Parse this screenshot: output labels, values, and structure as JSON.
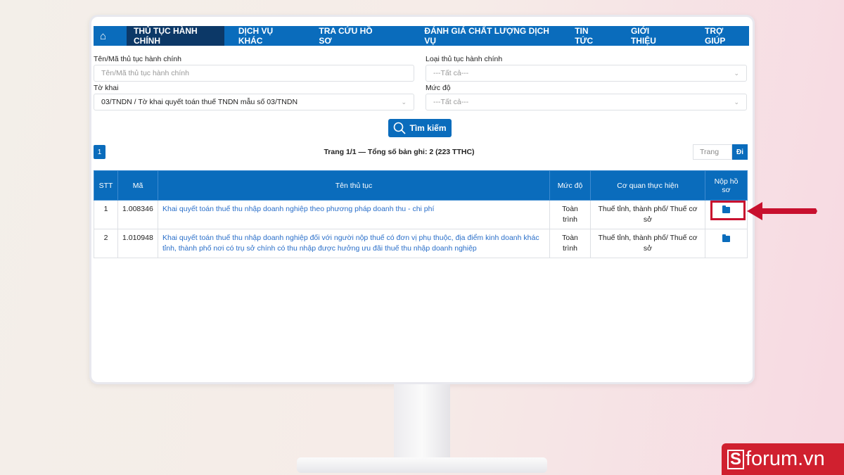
{
  "nav": {
    "home_icon": "home-icon",
    "items": [
      "THỦ TỤC HÀNH CHÍNH",
      "DỊCH VỤ KHÁC",
      "TRA CỨU HỒ SƠ",
      "ĐÁNH GIÁ CHẤT LƯỢNG DỊCH VỤ",
      "TIN TỨC",
      "GIỚI THIỆU",
      "TRỢ GIÚP"
    ],
    "active": 0
  },
  "form": {
    "name_label": "Tên/Mã thủ tục hành chính",
    "name_placeholder": "Tên/Mã thủ tục hành chính",
    "type_label": "Loại thủ tục hành chính",
    "type_value": "---Tất cả---",
    "form_label": "Tờ khai",
    "form_value": "03/TNDN / Tờ khai quyết toán thuế TNDN mẫu số 03/TNDN",
    "level_label": "Mức độ",
    "level_value": "---Tất cả---",
    "search_button": "Tìm kiếm"
  },
  "pagination": {
    "current_page": "1",
    "info": "Trang 1/1 — Tổng số bản ghi: 2 (223 TTHC)",
    "page_input_placeholder": "Trang",
    "go_button": "Đi"
  },
  "table": {
    "headers": [
      "STT",
      "Mã",
      "Tên thủ tục",
      "Mức độ",
      "Cơ quan thực hiện",
      "Nộp hồ sơ"
    ],
    "rows": [
      {
        "stt": "1",
        "ma": "1.008346",
        "ten": "Khai quyết toán thuế thu nhập doanh nghiệp theo phương pháp doanh thu - chi phí",
        "muc_do": "Toàn trình",
        "co_quan": "Thuế tỉnh, thành phố/ Thuế cơ sở"
      },
      {
        "stt": "2",
        "ma": "1.010948",
        "ten": "Khai quyết toán thuế thu nhập doanh nghiệp đối với người nộp thuế có đơn vị phụ thuộc, địa điểm kinh doanh khác tỉnh, thành phố nơi có trụ sở chính có thu nhập được hưởng ưu đãi thuế thu nhập doanh nghiệp",
        "muc_do": "Toàn trình",
        "co_quan": "Thuế tỉnh, thành phố/ Thuế cơ sở"
      }
    ]
  },
  "colors": {
    "primary": "#0a6cbc",
    "active_nav": "#0c3867",
    "highlight": "#c8102e"
  },
  "watermark": "Sforum.vn"
}
